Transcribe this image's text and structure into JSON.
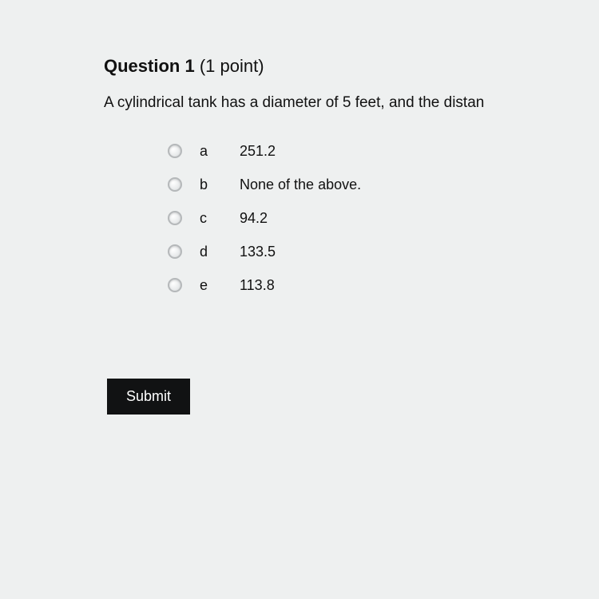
{
  "question": {
    "number_label": "Question 1",
    "points_label": "(1 point)",
    "text": "A cylindrical tank has a diameter of 5 feet, and the distan"
  },
  "options": [
    {
      "letter": "a",
      "text": "251.2"
    },
    {
      "letter": "b",
      "text": "None of the above."
    },
    {
      "letter": "c",
      "text": "94.2"
    },
    {
      "letter": "d",
      "text": "133.5"
    },
    {
      "letter": "e",
      "text": "113.8"
    }
  ],
  "submit_label": "Submit",
  "colors": {
    "background": "#eef0f0",
    "text": "#111111",
    "submit_bg": "#111213",
    "submit_fg": "#ffffff",
    "radio_border": "#b5b8ba"
  }
}
